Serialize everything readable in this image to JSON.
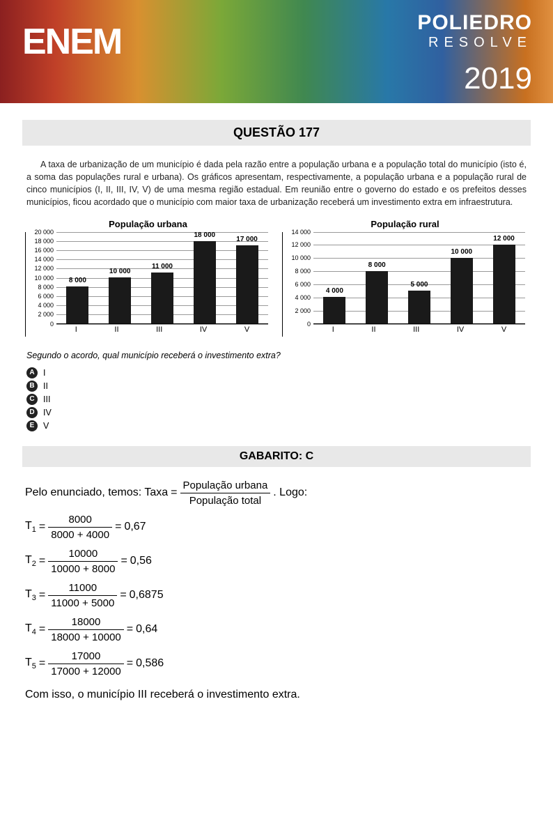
{
  "header": {
    "enem": "ENEM",
    "poliedro_main": "POLIEDRO",
    "poliedro_sub": "RESOLVE",
    "year": "2019"
  },
  "question": {
    "title": "QUESTÃO 177",
    "text": "A taxa de urbanização de um município é dada pela razão entre a população urbana e a população total do município (isto é, a soma das populações rural e urbana). Os gráficos apresentam, respectivamente, a população urbana e a população rural de cinco municípios (I, II, III, IV, V) de uma mesma região estadual. Em reunião entre o governo do estado e os prefeitos desses municípios, ficou acordado que o município com maior taxa de urbanização receberá um investimento extra em infraestrutura.",
    "post_question": "Segundo o acordo, qual município receberá o investimento extra?",
    "alternatives": [
      {
        "letter": "A",
        "text": "I"
      },
      {
        "letter": "B",
        "text": "II"
      },
      {
        "letter": "C",
        "text": "III"
      },
      {
        "letter": "D",
        "text": "IV"
      },
      {
        "letter": "E",
        "text": "V"
      }
    ]
  },
  "chart_urbana": {
    "type": "bar",
    "title": "População urbana",
    "categories": [
      "I",
      "II",
      "III",
      "IV",
      "V"
    ],
    "values": [
      8000,
      10000,
      11000,
      18000,
      17000
    ],
    "value_labels": [
      "8 000",
      "10 000",
      "11 000",
      "18 000",
      "17 000"
    ],
    "ymax": 20000,
    "ytick_step": 2000,
    "ytick_labels": [
      "0",
      "2 000",
      "4 000",
      "6 000",
      "8 000",
      "10 000",
      "12 000",
      "14 000",
      "16 000",
      "18 000",
      "20 000"
    ],
    "bar_color": "#1a1a1a",
    "grid_color": "#999999",
    "background_color": "#ffffff"
  },
  "chart_rural": {
    "type": "bar",
    "title": "População rural",
    "categories": [
      "I",
      "II",
      "III",
      "IV",
      "V"
    ],
    "values": [
      4000,
      8000,
      5000,
      10000,
      12000
    ],
    "value_labels": [
      "4 000",
      "8 000",
      "5 000",
      "10 000",
      "12 000"
    ],
    "ymax": 14000,
    "ytick_step": 2000,
    "ytick_labels": [
      "0",
      "2 000",
      "4 000",
      "6 000",
      "8 000",
      "10 000",
      "12 000",
      "14 000"
    ],
    "bar_color": "#1a1a1a",
    "grid_color": "#999999",
    "background_color": "#ffffff"
  },
  "answer": {
    "gabarito": "GABARITO: C",
    "intro_a": "Pelo enunciado, temos: Taxa",
    "intro_b": ". Logo:",
    "frac_num": "População urbana",
    "frac_den": "População total",
    "eqs": [
      {
        "t": "T",
        "sub": "1",
        "num": "8000",
        "den": "8000 + 4000",
        "res": "0,67"
      },
      {
        "t": "T",
        "sub": "2",
        "num": "10000",
        "den": "10000 + 8000",
        "res": "0,56"
      },
      {
        "t": "T",
        "sub": "3",
        "num": "11000",
        "den": "11000 + 5000",
        "res": "0,6875"
      },
      {
        "t": "T",
        "sub": "4",
        "num": "18000",
        "den": "18000 + 10000",
        "res": "0,64"
      },
      {
        "t": "T",
        "sub": "5",
        "num": "17000",
        "den": "17000 + 12000",
        "res": "0,586"
      }
    ],
    "final": "Com isso, o município III receberá o investimento extra."
  }
}
